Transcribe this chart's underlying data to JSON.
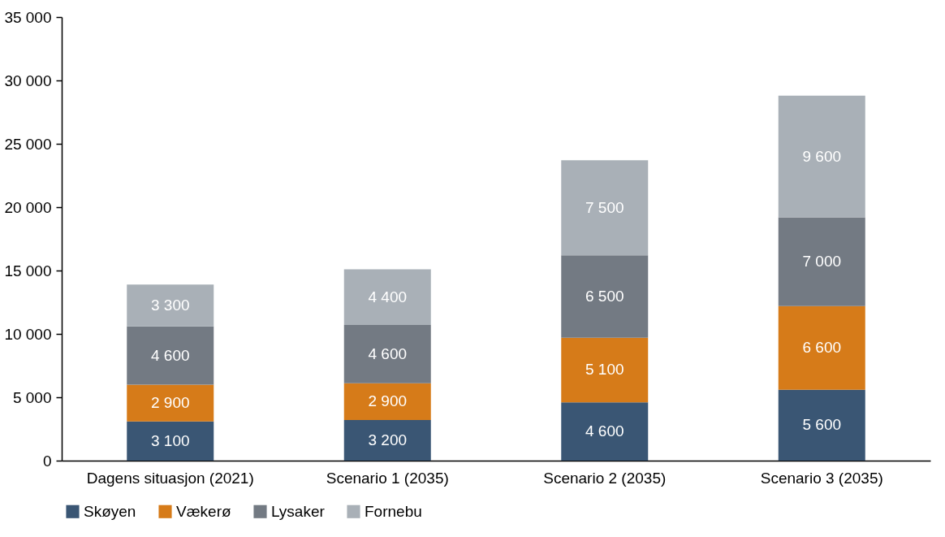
{
  "chart_data": {
    "type": "bar",
    "stacked": true,
    "grid": false,
    "legend": "bottom",
    "categories": [
      "Dagens situasjon (2021)",
      "Scenario 1 (2035)",
      "Scenario 2 (2035)",
      "Scenario 3 (2035)"
    ],
    "ylim": [
      0,
      35000
    ],
    "yticks": [
      0,
      {
        "value": 5000,
        "label": "5 000"
      },
      {
        "value": 10000,
        "label": "10 000"
      },
      {
        "value": 15000,
        "label": "15 000"
      },
      {
        "value": 20000,
        "label": "20 000"
      },
      {
        "value": 25000,
        "label": "25 000"
      },
      {
        "value": 30000,
        "label": "30 000"
      },
      {
        "value": 35000,
        "label": "35 000"
      }
    ],
    "series": [
      {
        "name": "Skøyen",
        "color": "#3a5674",
        "values": [
          3100,
          3200,
          4600,
          5600
        ],
        "value_labels": [
          "3 100",
          "3 200",
          "4 600",
          "5 600"
        ]
      },
      {
        "name": "Vækerø",
        "color": "#d67b19",
        "values": [
          2900,
          2900,
          5100,
          6600
        ],
        "value_labels": [
          "2 900",
          "2 900",
          "5 100",
          "6 600"
        ]
      },
      {
        "name": "Lysaker",
        "color": "#737a83",
        "values": [
          4600,
          4600,
          6500,
          7000
        ],
        "value_labels": [
          "4 600",
          "4 600",
          "6 500",
          "7 000"
        ]
      },
      {
        "name": "Fornebu",
        "color": "#a9b0b7",
        "values": [
          3300,
          4400,
          7500,
          9600
        ],
        "value_labels": [
          "3 300",
          "4 400",
          "7 500",
          "9 600"
        ]
      }
    ]
  }
}
